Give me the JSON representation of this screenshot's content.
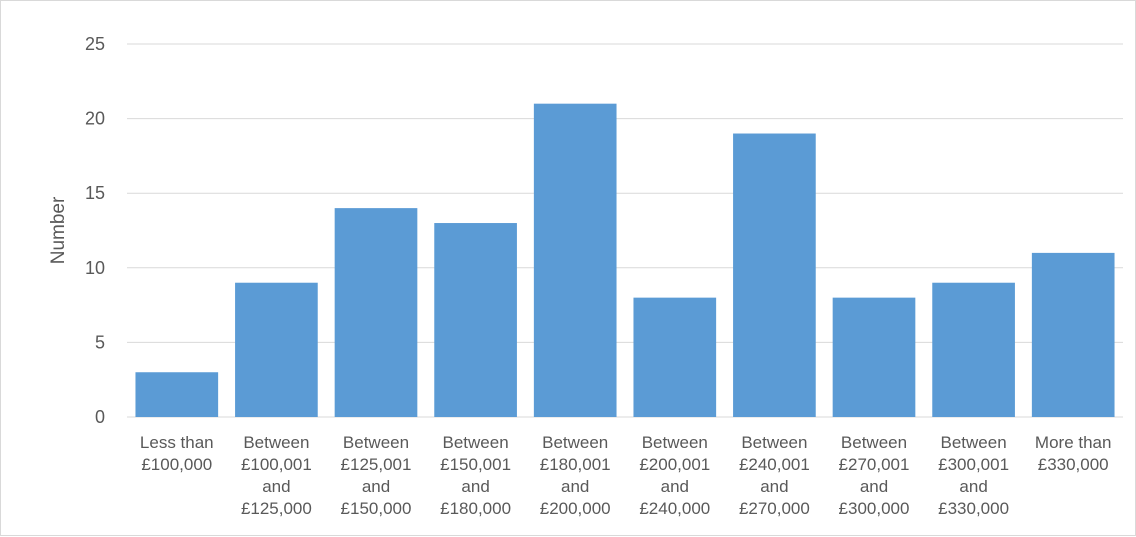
{
  "chart_data": {
    "type": "bar",
    "title": "",
    "xlabel": "",
    "ylabel": "Number",
    "ylim": [
      0,
      25
    ],
    "yticks": [
      0,
      5,
      10,
      15,
      20,
      25
    ],
    "grid": true,
    "legend": "none",
    "bar_color": "#5b9bd5",
    "grid_color": "#d9d9d9",
    "text_color": "#595959",
    "categories": [
      [
        "Less than",
        "£100,000"
      ],
      [
        "Between",
        "£100,001",
        "and",
        "£125,000"
      ],
      [
        "Between",
        "£125,001",
        "and",
        "£150,000"
      ],
      [
        "Between",
        "£150,001",
        "and",
        "£180,000"
      ],
      [
        "Between",
        "£180,001",
        "and",
        "£200,000"
      ],
      [
        "Between",
        "£200,001",
        "and",
        "£240,000"
      ],
      [
        "Between",
        "£240,001",
        "and",
        "£270,000"
      ],
      [
        "Between",
        "£270,001",
        "and",
        "£300,000"
      ],
      [
        "Between",
        "£300,001",
        "and",
        "£330,000"
      ],
      [
        "More than",
        "£330,000"
      ]
    ],
    "values": [
      3,
      9,
      14,
      13,
      21,
      8,
      19,
      8,
      9,
      11
    ]
  }
}
